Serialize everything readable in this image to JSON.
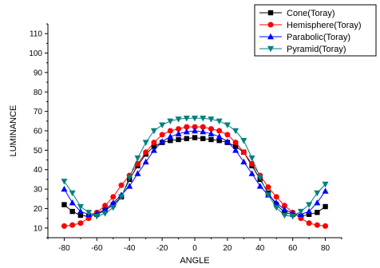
{
  "chart_data": {
    "type": "line",
    "xlabel": "ANGLE",
    "ylabel": "LUMINANCE",
    "xlim": [
      -90,
      90
    ],
    "ylim": [
      5,
      115
    ],
    "xticks": [
      -80,
      -60,
      -40,
      -20,
      0,
      20,
      40,
      60,
      80
    ],
    "yticks": [
      10,
      20,
      30,
      40,
      50,
      60,
      70,
      80,
      90,
      100,
      110
    ],
    "grid": false,
    "legend_position": "top-right",
    "x": [
      -80,
      -75,
      -70,
      -65,
      -60,
      -55,
      -50,
      -45,
      -40,
      -35,
      -30,
      -25,
      -20,
      -15,
      -10,
      -5,
      0,
      5,
      10,
      15,
      20,
      25,
      30,
      35,
      40,
      45,
      50,
      55,
      60,
      65,
      70,
      75,
      80
    ],
    "series": [
      {
        "name": "Cone(Toray)",
        "color": "#000000",
        "marker": "square",
        "values": [
          22,
          18.5,
          16.5,
          16,
          17,
          19,
          22,
          26,
          35,
          42,
          48,
          52,
          54,
          55,
          55.5,
          56,
          56.5,
          56,
          55.5,
          55,
          54,
          52,
          49,
          42,
          35,
          28,
          22,
          18,
          17,
          16,
          17,
          18,
          21
        ]
      },
      {
        "name": "Hemisphere(Toray)",
        "color": "#ff0000",
        "marker": "circle",
        "values": [
          11,
          11.5,
          12.5,
          15,
          18,
          21.5,
          26,
          32,
          37,
          43,
          49,
          54,
          58,
          60,
          61,
          62,
          62,
          62,
          61,
          60,
          58,
          54,
          49,
          43,
          37,
          31,
          26,
          21.5,
          18,
          15,
          12.5,
          11.5,
          11
        ]
      },
      {
        "name": "Parabolic(Toray)",
        "color": "#0000ff",
        "marker": "triangle-up",
        "values": [
          30,
          23,
          18.5,
          17,
          17.5,
          19.5,
          23,
          27,
          31.5,
          38,
          44,
          50,
          54.5,
          57,
          58.5,
          59.5,
          60,
          59.5,
          58.5,
          57,
          54.5,
          50,
          44,
          38,
          31.5,
          27,
          23,
          19.5,
          17.5,
          17,
          18.5,
          23,
          29
        ]
      },
      {
        "name": "Pyramid(Toray)",
        "color": "#008080",
        "marker": "triangle-down",
        "values": [
          34,
          28,
          21,
          18,
          16,
          17.5,
          20.5,
          26,
          36,
          46,
          54,
          60,
          63,
          65,
          66,
          66.5,
          66.5,
          66.5,
          66,
          65,
          63,
          60,
          55,
          46,
          36,
          27,
          20.5,
          16.5,
          16,
          18.5,
          22,
          28,
          32.5
        ]
      }
    ]
  }
}
